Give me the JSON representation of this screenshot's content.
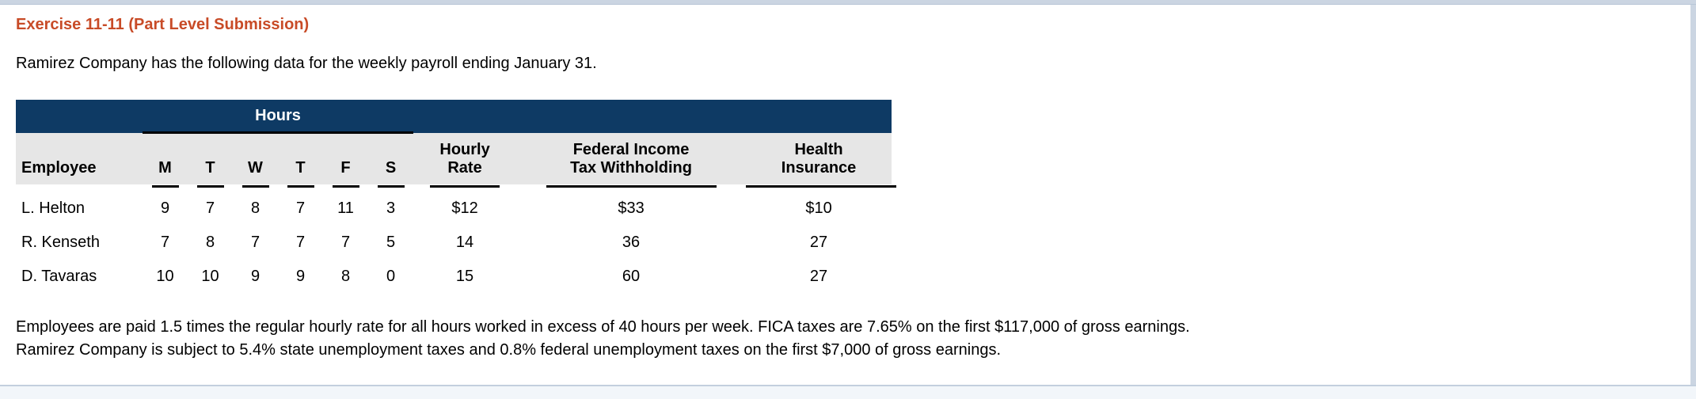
{
  "page": {
    "title": "Exercise 11-11 (Part Level Submission)",
    "intro": "Ramirez Company has the following data for the weekly payroll ending January 31.",
    "note_line1": "Employees are paid 1.5 times the regular hourly rate for all hours worked in excess of 40 hours per week. FICA taxes are 7.65% on the first $117,000 of gross earnings.",
    "note_line2": "Ramirez Company is subject to 5.4% state unemployment taxes and 0.8% federal unemployment taxes on the first $7,000 of gross earnings."
  },
  "colors": {
    "title_accent": "#c84b27",
    "table_band_navy": "#0e3a64",
    "table_header_gray": "#e6e6e6",
    "frame_strip_blue": "#cbd5e2",
    "footer_strip_blue": "#f2f6fa",
    "rule_black": "#000000"
  },
  "table": {
    "group_header": "Hours",
    "headers": {
      "employee": "Employee",
      "days": [
        "M",
        "T",
        "W",
        "T",
        "F",
        "S"
      ],
      "hourly_rate": [
        "Hourly",
        "Rate"
      ],
      "federal": [
        "Federal Income",
        "Tax Withholding"
      ],
      "health": [
        "Health",
        "Insurance"
      ]
    },
    "rows": [
      {
        "cells": [
          "L. Helton",
          "9",
          "7",
          "8",
          "7",
          "11",
          "3",
          "$12",
          "$33",
          "$10"
        ]
      },
      {
        "cells": [
          "R. Kenseth",
          "7",
          "8",
          "7",
          "7",
          "7",
          "5",
          "14",
          "36",
          "27"
        ]
      },
      {
        "cells": [
          "D. Tavaras",
          "10",
          "10",
          "9",
          "9",
          "8",
          "0",
          "15",
          "60",
          "27"
        ]
      }
    ]
  }
}
